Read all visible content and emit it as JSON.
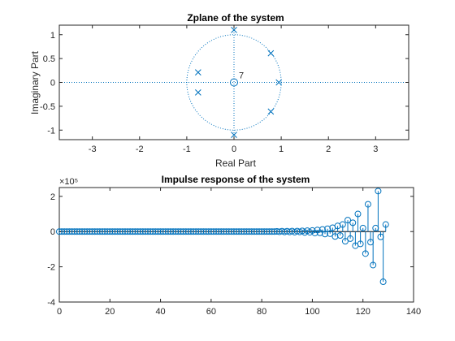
{
  "chart_data": [
    {
      "type": "scatter",
      "title": "Zplane of the system",
      "xlabel": "Real Part",
      "ylabel": "Imaginary Part",
      "xlim": [
        -3.7,
        3.7
      ],
      "ylim": [
        -1.2,
        1.2
      ],
      "xticks": [
        "-3",
        "-2",
        "-1",
        "0",
        "1",
        "2",
        "3"
      ],
      "yticks": [
        "-1",
        "-0.5",
        "0",
        "0.5",
        "1"
      ],
      "unit_circle": true,
      "color": "#0072BD",
      "zeros": [
        {
          "x": 0,
          "y": 0,
          "multiplicity_label": "7"
        }
      ],
      "poles": [
        {
          "x": 0.0,
          "y": 1.1
        },
        {
          "x": 0.78,
          "y": 0.61
        },
        {
          "x": 0.95,
          "y": 0.0
        },
        {
          "x": 0.78,
          "y": -0.61
        },
        {
          "x": 0.0,
          "y": -1.1
        },
        {
          "x": -0.76,
          "y": 0.21
        },
        {
          "x": -0.76,
          "y": -0.21
        }
      ]
    },
    {
      "type": "stem",
      "title": "Impulse response of the system",
      "xlabel": "",
      "ylabel": "",
      "xlim": [
        0,
        140
      ],
      "ylim": [
        -4,
        2.5
      ],
      "y_exponent": "×10⁵",
      "xticks": [
        "0",
        "20",
        "40",
        "60",
        "80",
        "100",
        "120",
        "140"
      ],
      "yticks": [
        "-4",
        "-2",
        "0",
        "2"
      ],
      "color": "#0072BD",
      "n_start": 0,
      "values": [
        0,
        0,
        0,
        0,
        0,
        0,
        0,
        0,
        0,
        0,
        0,
        0,
        0,
        0,
        0,
        0,
        0,
        0,
        0,
        0,
        0,
        0,
        0,
        0,
        0,
        0,
        0,
        0,
        0,
        0,
        0,
        0,
        0,
        0,
        0,
        0,
        0,
        0,
        0,
        0,
        0,
        0,
        0,
        0,
        0,
        0,
        0,
        0,
        0,
        0,
        0,
        0,
        0,
        0,
        0,
        0,
        0,
        0,
        0,
        0,
        0,
        0,
        0,
        0,
        0,
        0,
        0,
        0,
        0,
        0,
        0,
        0,
        0,
        0,
        0,
        0,
        0,
        0,
        0,
        0,
        0,
        0,
        0,
        0,
        0,
        0,
        0.01,
        -0.01,
        0.02,
        -0.02,
        0.02,
        -0.02,
        0.03,
        -0.03,
        0.03,
        -0.02,
        0.04,
        -0.05,
        0.05,
        -0.04,
        0.06,
        -0.08,
        0.09,
        -0.07,
        0.12,
        -0.14,
        0.16,
        -0.12,
        0.22,
        -0.28,
        0.32,
        -0.22,
        0.4,
        -0.55,
        0.65,
        -0.4,
        0.5,
        -0.8,
        1.0,
        -0.7,
        0.2,
        -1.25,
        1.55,
        -0.6,
        -1.9,
        0.2,
        2.3,
        -0.3,
        -2.85,
        0.4
      ]
    }
  ]
}
